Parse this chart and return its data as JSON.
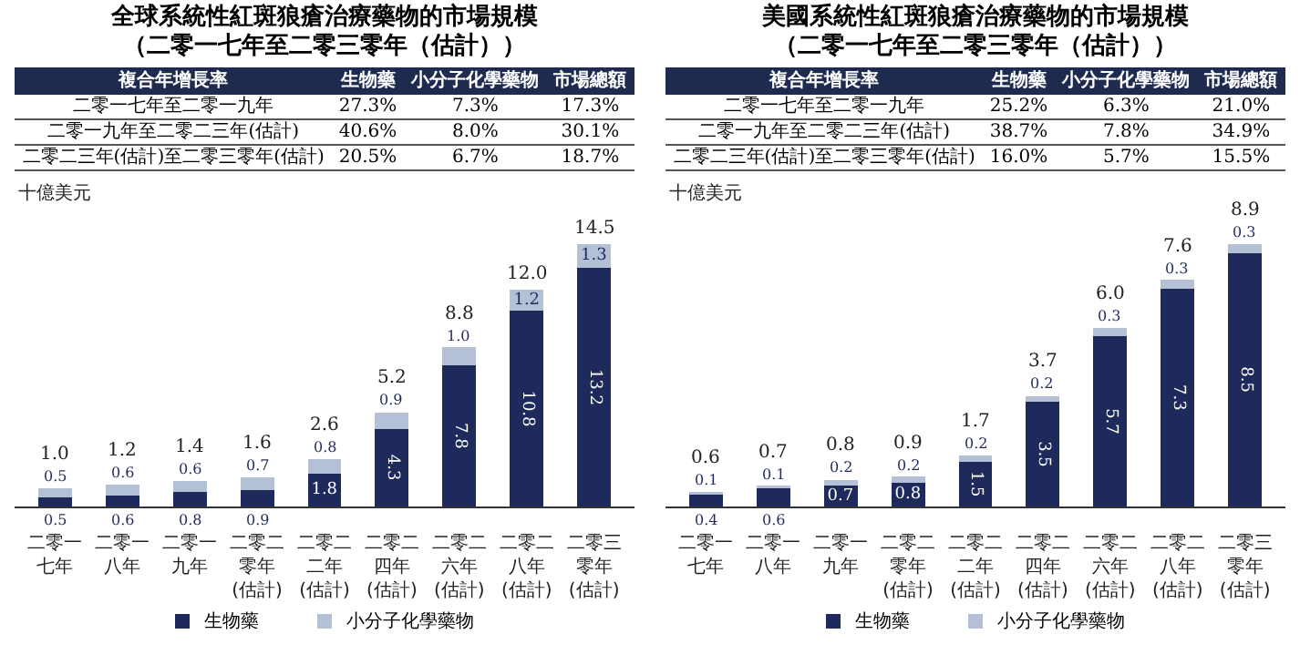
{
  "chart_data": [
    {
      "type": "bar",
      "title": "全球系統性紅斑狼瘡治療藥物的市場規模",
      "subtitle": "（二零一七年至二零三零年（估計））",
      "ylabel": "十億美元",
      "categories": [
        "二零一七年",
        "二零一八年",
        "二零一九年",
        "二零二零年(估計)",
        "二零二二年(估計)",
        "二零二四年(估計)",
        "二零二六年(估計)",
        "二零二八年(估計)",
        "二零三零年(估計)"
      ],
      "series": [
        {
          "name": "生物藥",
          "color": "#1f2a5c",
          "values": [
            0.5,
            0.6,
            0.8,
            0.9,
            1.8,
            4.3,
            7.8,
            10.8,
            13.2
          ],
          "value_labels": [
            "0.5",
            "0.6",
            "0.8",
            "0.9",
            "1.8",
            "4.3",
            "7.8",
            "10.8",
            "13.2"
          ]
        },
        {
          "name": "小分子化學藥物",
          "color": "#b4c0d6",
          "values": [
            0.5,
            0.6,
            0.6,
            0.7,
            0.8,
            0.9,
            1.0,
            1.2,
            1.3
          ],
          "value_labels": [
            "0.5",
            "0.6",
            "0.6",
            "0.7",
            "0.8",
            "0.9",
            "1.0",
            "1.2",
            "1.3"
          ]
        }
      ],
      "stacked": true,
      "totals": [
        "1.0",
        "1.2",
        "1.4",
        "1.6",
        "2.6",
        "5.2",
        "8.8",
        "12.0",
        "14.5"
      ],
      "legend": "bottom",
      "grid": false,
      "annotations": [
        "複合年增長率",
        "生物藥",
        "小分子化學藥物",
        "市場總額",
        "二零一七年至二零一九年",
        "27.3%",
        "7.3%",
        "17.3%",
        "二零一九年至二零二三年(估計)",
        "40.6%",
        "8.0%",
        "30.1%",
        "二零二三年(估計)至二零三零年(估計)",
        "20.5%",
        "6.7%",
        "18.7%"
      ]
    },
    {
      "type": "bar",
      "title": "美國系統性紅斑狼瘡治療藥物的市場規模",
      "subtitle": "（二零一七年至二零三零年（估計））",
      "ylabel": "十億美元",
      "categories": [
        "二零一七年",
        "二零一八年",
        "二零一九年",
        "二零二零年(估計)",
        "二零二二年(估計)",
        "二零二四年(估計)",
        "二零二六年(估計)",
        "二零二八年(估計)",
        "二零三零年(估計)"
      ],
      "series": [
        {
          "name": "生物藥",
          "color": "#1f2a5c",
          "values": [
            0.4,
            0.6,
            0.7,
            0.8,
            1.5,
            3.5,
            5.7,
            7.3,
            8.5
          ],
          "value_labels": [
            "0.4",
            "0.6",
            "0.7",
            "0.8",
            "1.5",
            "3.5",
            "5.7",
            "7.3",
            "8.5"
          ]
        },
        {
          "name": "小分子化學藥物",
          "color": "#b4c0d6",
          "values": [
            0.1,
            0.1,
            0.2,
            0.2,
            0.2,
            0.2,
            0.3,
            0.3,
            0.3
          ],
          "value_labels": [
            "0.1",
            "0.1",
            "0.2",
            "0.2",
            "0.2",
            "0.2",
            "0.3",
            "0.3",
            "0.3"
          ]
        }
      ],
      "stacked": true,
      "totals": [
        "0.6",
        "0.7",
        "0.8",
        "0.9",
        "1.7",
        "3.7",
        "6.0",
        "7.6",
        "8.9"
      ],
      "legend": "bottom",
      "grid": false,
      "annotations": [
        "複合年增長率",
        "生物藥",
        "小分子化學藥物",
        "市場總額",
        "二零一七年至二零一九年",
        "25.2%",
        "6.3%",
        "21.0%",
        "二零一九年至二零二三年(估計)",
        "38.7%",
        "7.8%",
        "34.9%",
        "二零二三年(估計)至二零三零年(估計)",
        "16.0%",
        "5.7%",
        "15.5%"
      ]
    }
  ]
}
